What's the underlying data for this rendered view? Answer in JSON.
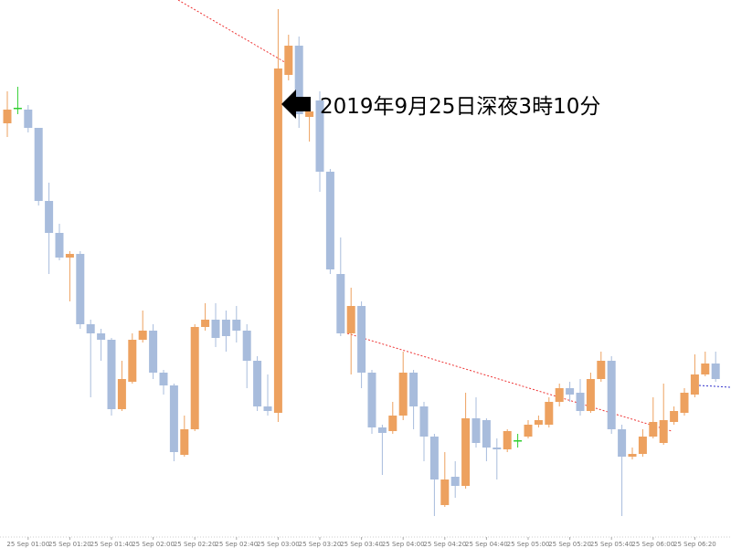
{
  "chart_data": {
    "type": "candlestick",
    "annotation": "2019年9月25日深夜3時10分",
    "categories": [
      null,
      null,
      "25 Sep 01:00",
      null,
      null,
      null,
      "25 Sep 01:20",
      null,
      null,
      null,
      "25 Sep 01:40",
      null,
      null,
      null,
      "25 Sep 02:00",
      null,
      null,
      null,
      "25 Sep 02:20",
      null,
      null,
      null,
      "25 Sep 02:40",
      null,
      null,
      null,
      "25 Sep 03:00",
      null,
      null,
      null,
      "25 Sep 03:20",
      null,
      null,
      null,
      "25 Sep 03:40",
      null,
      null,
      null,
      "25 Sep 04:00",
      null,
      null,
      null,
      "25 Sep 04:20",
      null,
      null,
      null,
      "25 Sep 04:40",
      null,
      null,
      null,
      "25 Sep 05:00",
      null,
      null,
      null,
      "25 Sep 05:20",
      null,
      null,
      null,
      "25 Sep 05:40",
      null,
      null,
      null,
      "25 Sep 06:00",
      null,
      null,
      null,
      "25 Sep 06:20",
      null,
      null
    ],
    "open": [
      465,
      482,
      480,
      460,
      380,
      345,
      318,
      322,
      245,
      235,
      228,
      152,
      182,
      228,
      238,
      192,
      178,
      102,
      130,
      242,
      250,
      250,
      250,
      238,
      205,
      155,
      148,
      518,
      550,
      472,
      490,
      412,
      300,
      235,
      265,
      192,
      132,
      128,
      145,
      192,
      155,
      122,
      47,
      78,
      68,
      142,
      140,
      110,
      108,
      118,
      122,
      135,
      135,
      160,
      175,
      170,
      150,
      185,
      205,
      130,
      100,
      103,
      122,
      115,
      138,
      148,
      168,
      190,
      202
    ],
    "high": [
      500,
      505,
      485,
      460,
      400,
      355,
      325,
      325,
      250,
      240,
      230,
      205,
      235,
      260,
      245,
      195,
      180,
      145,
      245,
      268,
      268,
      260,
      265,
      245,
      210,
      190,
      590,
      562,
      560,
      490,
      500,
      415,
      340,
      285,
      270,
      195,
      135,
      160,
      215,
      195,
      160,
      125,
      105,
      95,
      170,
      165,
      142,
      120,
      130,
      125,
      140,
      145,
      165,
      180,
      182,
      185,
      192,
      215,
      210,
      135,
      110,
      130,
      165,
      180,
      155,
      175,
      212,
      215,
      215
    ],
    "low": [
      450,
      475,
      455,
      375,
      300,
      315,
      270,
      240,
      165,
      205,
      145,
      150,
      180,
      225,
      185,
      168,
      95,
      100,
      128,
      238,
      220,
      215,
      225,
      175,
      150,
      145,
      138,
      512,
      460,
      445,
      390,
      300,
      232,
      190,
      175,
      125,
      80,
      125,
      140,
      130,
      95,
      35,
      45,
      55,
      65,
      110,
      95,
      75,
      105,
      110,
      120,
      132,
      132,
      155,
      160,
      145,
      148,
      182,
      125,
      35,
      97,
      100,
      120,
      113,
      135,
      145,
      165,
      188,
      182
    ],
    "close": [
      480,
      482,
      460,
      380,
      345,
      318,
      322,
      245,
      235,
      228,
      152,
      185,
      228,
      238,
      192,
      178,
      105,
      130,
      242,
      250,
      230,
      232,
      238,
      205,
      155,
      150,
      525,
      550,
      475,
      478,
      412,
      305,
      235,
      265,
      192,
      132,
      126,
      145,
      192,
      155,
      122,
      75,
      75,
      68,
      142,
      115,
      110,
      108,
      128,
      118,
      135,
      140,
      160,
      175,
      168,
      150,
      185,
      205,
      130,
      100,
      103,
      122,
      138,
      140,
      150,
      170,
      190,
      202,
      185
    ],
    "ylim": [
      0,
      600
    ],
    "colors": {
      "up": "#eda15f",
      "down": "#a8bcdc",
      "doji": "#2fcf2f"
    }
  }
}
